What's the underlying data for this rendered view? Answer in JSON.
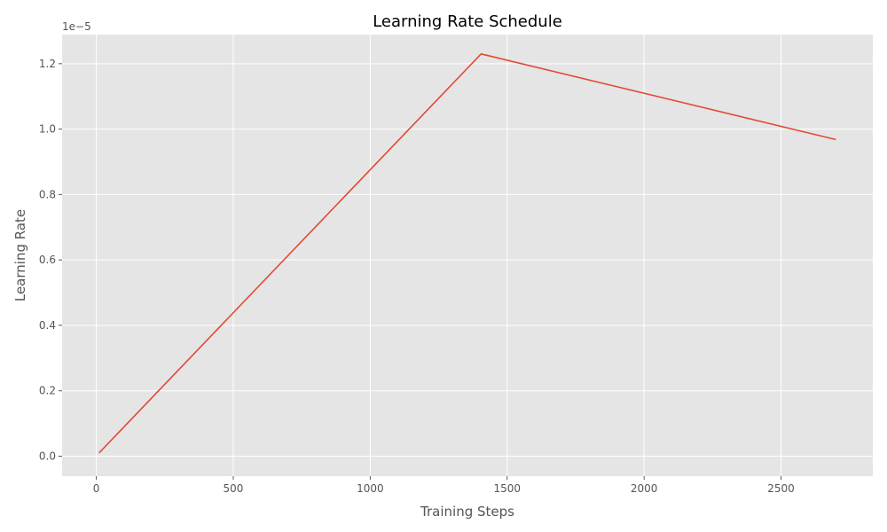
{
  "chart_data": {
    "type": "line",
    "title": "Learning Rate Schedule",
    "xlabel": "Training Steps",
    "ylabel": "Learning Rate",
    "y_offset_label": "1e−5",
    "x_ticks": [
      "0",
      "500",
      "1000",
      "1500",
      "2000",
      "2500"
    ],
    "y_ticks": [
      "0.0",
      "0.2",
      "0.4",
      "0.6",
      "0.8",
      "1.0",
      "1.2"
    ],
    "xlim": [
      -125,
      2835
    ],
    "ylim": [
      -0.061,
      1.289
    ],
    "y_unit": "1e-5",
    "grid": true,
    "series": [
      {
        "color": "#E24A33",
        "x": [
          10,
          1405,
          2700
        ],
        "y": [
          0.01,
          1.23,
          0.968
        ]
      }
    ],
    "style": {
      "plot_bg": "#E5E5E5",
      "grid_color": "#FFFFFF"
    }
  }
}
